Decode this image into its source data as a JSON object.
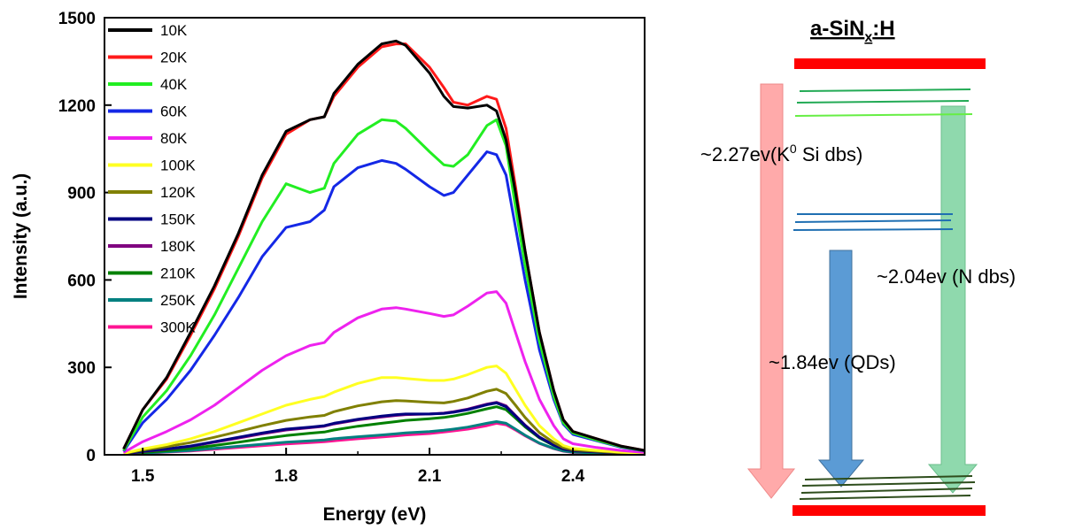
{
  "chart_data": {
    "type": "line",
    "xlabel": "Energy (eV)",
    "ylabel": "Intensity (a.u.)",
    "xlim": [
      1.42,
      2.55
    ],
    "ylim": [
      0,
      1500
    ],
    "x_ticks": [
      "1.5",
      "1.8",
      "2.1",
      "2.4"
    ],
    "y_ticks": [
      "0",
      "300",
      "600",
      "900",
      "1200",
      "1500"
    ],
    "legend_position": "top-left",
    "grid": false,
    "x": [
      1.46,
      1.5,
      1.55,
      1.6,
      1.65,
      1.7,
      1.75,
      1.8,
      1.85,
      1.88,
      1.9,
      1.95,
      2.0,
      2.03,
      2.05,
      2.1,
      2.13,
      2.15,
      2.18,
      2.22,
      2.24,
      2.26,
      2.28,
      2.3,
      2.33,
      2.36,
      2.38,
      2.4,
      2.45,
      2.5,
      2.55
    ],
    "series": [
      {
        "name": "10K",
        "color": "#000000",
        "values": [
          20,
          155,
          265,
          420,
          580,
          760,
          960,
          1110,
          1150,
          1160,
          1240,
          1340,
          1410,
          1420,
          1405,
          1310,
          1230,
          1195,
          1190,
          1200,
          1180,
          1080,
          900,
          700,
          420,
          220,
          120,
          80,
          55,
          30,
          15
        ]
      },
      {
        "name": "20K",
        "color": "#ff1a1a",
        "values": [
          20,
          155,
          260,
          410,
          570,
          750,
          950,
          1100,
          1150,
          1160,
          1230,
          1330,
          1400,
          1410,
          1410,
          1330,
          1260,
          1210,
          1200,
          1230,
          1220,
          1120,
          920,
          700,
          420,
          220,
          120,
          80,
          55,
          30,
          15
        ]
      },
      {
        "name": "40K",
        "color": "#22ee22",
        "values": [
          15,
          130,
          220,
          340,
          480,
          640,
          800,
          930,
          900,
          915,
          1000,
          1100,
          1150,
          1145,
          1120,
          1040,
          995,
          990,
          1030,
          1130,
          1150,
          1060,
          850,
          650,
          390,
          200,
          110,
          75,
          50,
          28,
          14
        ]
      },
      {
        "name": "60K",
        "color": "#1428e6",
        "values": [
          12,
          110,
          190,
          290,
          410,
          540,
          680,
          780,
          800,
          840,
          920,
          985,
          1010,
          1000,
          980,
          920,
          890,
          900,
          960,
          1040,
          1030,
          960,
          780,
          600,
          360,
          190,
          105,
          70,
          48,
          26,
          13
        ]
      },
      {
        "name": "80K",
        "color": "#ee22ee",
        "values": [
          8,
          45,
          80,
          120,
          170,
          230,
          290,
          340,
          375,
          385,
          420,
          470,
          500,
          505,
          500,
          485,
          475,
          480,
          510,
          555,
          560,
          520,
          420,
          320,
          190,
          100,
          55,
          38,
          25,
          15,
          8
        ]
      },
      {
        "name": "100K",
        "color": "#ffff22",
        "values": [
          5,
          20,
          35,
          55,
          80,
          110,
          140,
          170,
          190,
          200,
          215,
          245,
          265,
          265,
          262,
          255,
          255,
          260,
          275,
          300,
          305,
          280,
          225,
          170,
          100,
          55,
          32,
          22,
          15,
          9,
          5
        ]
      },
      {
        "name": "120K",
        "color": "#808000",
        "values": [
          4,
          16,
          28,
          42,
          60,
          80,
          100,
          118,
          130,
          135,
          148,
          168,
          182,
          186,
          185,
          180,
          178,
          183,
          195,
          218,
          225,
          210,
          170,
          128,
          76,
          42,
          25,
          17,
          12,
          7,
          4
        ]
      },
      {
        "name": "150K",
        "color": "#000080",
        "values": [
          3,
          12,
          20,
          30,
          45,
          60,
          75,
          88,
          95,
          100,
          108,
          122,
          133,
          138,
          140,
          140,
          142,
          146,
          155,
          172,
          178,
          165,
          133,
          100,
          60,
          33,
          20,
          14,
          10,
          6,
          3
        ]
      },
      {
        "name": "180K",
        "color": "#800080",
        "values": [
          3,
          11,
          19,
          29,
          43,
          57,
          72,
          85,
          93,
          98,
          106,
          120,
          130,
          135,
          138,
          140,
          143,
          148,
          157,
          174,
          180,
          168,
          135,
          102,
          61,
          34,
          20,
          14,
          10,
          6,
          3
        ]
      },
      {
        "name": "210K",
        "color": "#008000",
        "values": [
          2,
          8,
          14,
          22,
          32,
          43,
          55,
          66,
          74,
          78,
          85,
          98,
          108,
          114,
          118,
          124,
          128,
          133,
          142,
          158,
          165,
          155,
          126,
          96,
          58,
          32,
          19,
          13,
          9,
          5,
          2
        ]
      },
      {
        "name": "250K",
        "color": "#008080",
        "values": [
          2,
          6,
          10,
          15,
          22,
          29,
          36,
          43,
          48,
          51,
          55,
          62,
          68,
          72,
          75,
          80,
          84,
          88,
          95,
          108,
          114,
          108,
          88,
          67,
          40,
          22,
          13,
          9,
          6,
          4,
          2
        ]
      },
      {
        "name": "300K",
        "color": "#ff1493",
        "values": [
          2,
          5,
          9,
          13,
          19,
          25,
          31,
          37,
          42,
          45,
          48,
          55,
          61,
          65,
          68,
          73,
          78,
          82,
          88,
          100,
          108,
          103,
          85,
          65,
          39,
          21,
          12,
          8,
          6,
          3,
          2
        ]
      }
    ]
  },
  "diagram": {
    "title_main": "a-SiN",
    "title_sub": "x",
    "title_tail": ":H",
    "label_k0": "~2.27ev(K",
    "label_k0_sup": "0",
    "label_k0_tail": " Si dbs)",
    "label_n": "~2.04ev (N dbs)",
    "label_qd": "~1.84ev (QDs)",
    "colors": {
      "band_edge": "#ff0000",
      "arrow_k0": "#ffaaaa",
      "arrow_qd": "#5b9bd5",
      "arrow_n": "#8fd9ad",
      "level_green": "#22aa55",
      "level_blue": "#1f6fb2",
      "level_dark": "#2e4d1c"
    }
  }
}
